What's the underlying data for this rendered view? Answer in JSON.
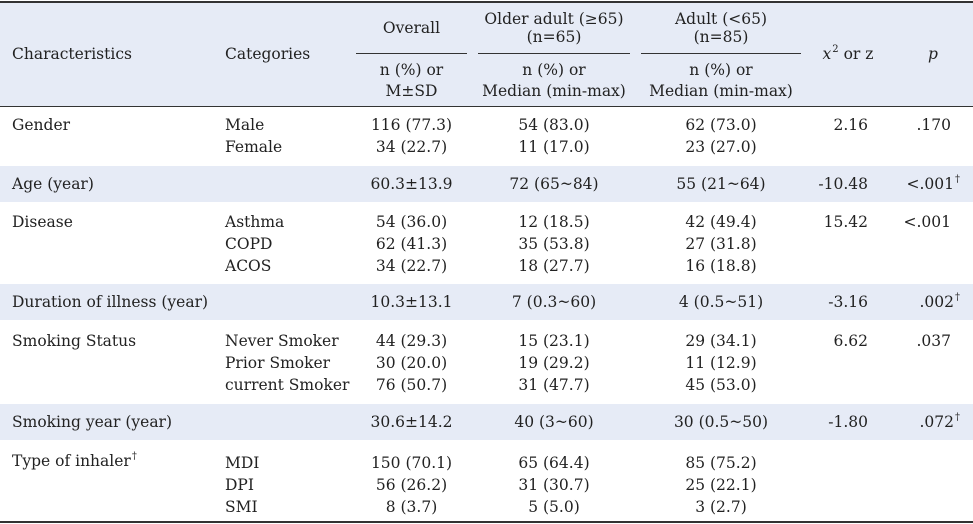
{
  "header": {
    "characteristics": "Characteristics",
    "categories": "Categories",
    "overall": "Overall",
    "older_line1": "Older adult (≥65)",
    "older_line2": "(n=65)",
    "adult_line1": "Adult (<65)",
    "adult_line2": "(n=85)",
    "chi_x": "x",
    "chi_sup": "2",
    "chi_rest": " or z",
    "p": "p",
    "overall_sub1": "n (%) or",
    "overall_sub2": "M±SD",
    "older_sub1": "n (%) or",
    "older_sub2": "Median (min-max)",
    "adult_sub1": "n (%) or",
    "adult_sub2": "Median (min-max)"
  },
  "rows": {
    "gender": {
      "label": "Gender",
      "cat1": "Male",
      "cat2": "Female",
      "overall1": "116 (77.3)",
      "overall2": "34 (22.7)",
      "older1": "54 (83.0)",
      "older2": "11 (17.0)",
      "adult1": "62 (73.0)",
      "adult2": "23 (27.0)",
      "stat": "2.16",
      "p": ".170"
    },
    "age": {
      "label": "Age (year)",
      "overall": "60.3±13.9",
      "older": "72 (65~84)",
      "adult": "55 (21~64)",
      "stat": "-10.48",
      "p": "<.001",
      "p_mark": "†"
    },
    "disease": {
      "label": "Disease",
      "cat1": "Asthma",
      "cat2": "COPD",
      "cat3": "ACOS",
      "overall1": "54 (36.0)",
      "overall2": "62 (41.3)",
      "overall3": "34 (22.7)",
      "older1": "12 (18.5)",
      "older2": "35 (53.8)",
      "older3": "18 (27.7)",
      "adult1": "42 (49.4)",
      "adult2": "27 (31.8)",
      "adult3": "16 (18.8)",
      "stat": "15.42",
      "p": "<.001"
    },
    "duration": {
      "label": "Duration of illness (year)",
      "overall": "10.3±13.1",
      "older": "7 (0.3~60)",
      "adult": "4 (0.5~51)",
      "stat": "-3.16",
      "p": ".002",
      "p_mark": "†"
    },
    "smoking": {
      "label": "Smoking Status",
      "cat1": "Never Smoker",
      "cat2": "Prior Smoker",
      "cat3": "current Smoker",
      "overall1": "44 (29.3)",
      "overall2": "30 (20.0)",
      "overall3": "76 (50.7)",
      "older1": "15 (23.1)",
      "older2": "19 (29.2)",
      "older3": "31 (47.7)",
      "adult1": "29 (34.1)",
      "adult2": "11 (12.9)",
      "adult3": "45 (53.0)",
      "stat": "6.62",
      "p": ".037"
    },
    "smoking_year": {
      "label": "Smoking year (year)",
      "overall": "30.6±14.2",
      "older": "40 (3~60)",
      "adult": "30 (0.5~50)",
      "stat": "-1.80",
      "p": ".072",
      "p_mark": "†"
    },
    "inhaler": {
      "label": "Type of inhaler",
      "label_mark": "†",
      "cat1": "MDI",
      "cat2": "DPI",
      "cat3": "SMI",
      "overall1": "150 (70.1)",
      "overall2": "56 (26.2)",
      "overall3": "8 (3.7)",
      "older1": "65 (64.4)",
      "older2": "31 (30.7)",
      "older3": "5 (5.0)",
      "adult1": "85 (75.2)",
      "adult2": "25 (22.1)",
      "adult3": "3 (2.7)"
    }
  }
}
